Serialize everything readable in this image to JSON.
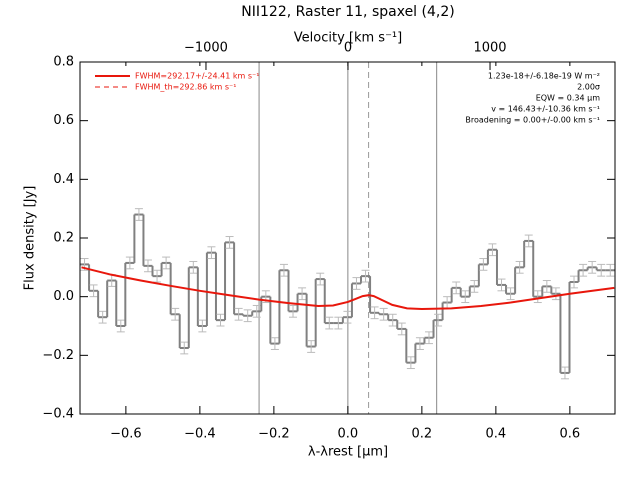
{
  "chart_data": {
    "type": "step",
    "title": "NII122, Raster 11, spaxel (4,2)",
    "xlabel": "λ-λrest [μm]",
    "ylabel": "Flux density [Jy]",
    "x2label": "Velocity [km s⁻¹]",
    "xlim": [
      -0.724,
      0.722
    ],
    "ylim": [
      -0.4,
      0.8
    ],
    "x2lim": [
      -1887,
      1880
    ],
    "xticks": [
      {
        "value": -0.6,
        "label": "−0.6"
      },
      {
        "value": -0.4,
        "label": "−0.4"
      },
      {
        "value": -0.2,
        "label": "−0.2"
      },
      {
        "value": 0,
        "label": "0.0"
      },
      0.2,
      0.4,
      0.6
    ],
    "yticks": [
      {
        "value": -0.4,
        "label": "−0.4"
      },
      {
        "value": -0.2,
        "label": "−0.2"
      },
      {
        "value": 0,
        "label": "0.0"
      },
      0.2,
      0.4,
      0.6,
      0.8
    ],
    "x2ticks": [
      {
        "value": -1000,
        "label": "−1000"
      },
      0,
      1000
    ],
    "series": [
      {
        "color": "#808080",
        "bins": [
          -0.724,
          -0.6995,
          -0.675,
          -0.6505,
          -0.626,
          -0.6015,
          -0.577,
          -0.5525,
          -0.528,
          -0.5035,
          -0.479,
          -0.4545,
          -0.43,
          -0.4055,
          -0.381,
          -0.3565,
          -0.332,
          -0.3075,
          -0.283,
          -0.2585,
          -0.234,
          -0.2095,
          -0.185,
          -0.1605,
          -0.136,
          -0.1115,
          -0.087,
          -0.0625,
          -0.038,
          -0.0135,
          0.011,
          0.0355,
          0.06,
          0.0845,
          0.109,
          0.1335,
          0.158,
          0.1825,
          0.207,
          0.2315,
          0.256,
          0.2805,
          0.305,
          0.3295,
          0.354,
          0.3785,
          0.403,
          0.4275,
          0.452,
          0.4765,
          0.501,
          0.5255,
          0.55,
          0.5745,
          0.599,
          0.6235,
          0.648,
          0.6725,
          0.697,
          0.7215
        ],
        "values": [
          0.11,
          0.02,
          -0.07,
          0.055,
          -0.1,
          0.115,
          0.28,
          0.105,
          0.07,
          0.115,
          -0.06,
          -0.175,
          0.1,
          -0.1,
          0.15,
          -0.08,
          0.185,
          -0.06,
          -0.065,
          -0.05,
          0.0,
          -0.16,
          0.09,
          -0.05,
          0.01,
          -0.17,
          0.06,
          -0.09,
          -0.09,
          -0.07,
          0.045,
          0.07,
          -0.055,
          -0.06,
          -0.08,
          -0.11,
          -0.225,
          -0.16,
          -0.14,
          -0.08,
          -0.02,
          0.03,
          0.0,
          0.035,
          0.11,
          0.16,
          0.04,
          0.01,
          0.1,
          0.19,
          0.0,
          0.035,
          0.01,
          -0.26,
          0.05,
          0.09,
          0.1,
          0.09,
          0.09
        ],
        "error": 0.02
      },
      {
        "name": "FWHM=292.17+/-24.41 km s⁻¹",
        "color": "#e8170c",
        "x": [
          -0.72,
          -0.64,
          -0.56,
          -0.48,
          -0.4,
          -0.32,
          -0.24,
          -0.16,
          -0.08,
          -0.04,
          0.0,
          0.02,
          0.04,
          0.056,
          0.07,
          0.09,
          0.12,
          0.16,
          0.2,
          0.28,
          0.36,
          0.44,
          0.52,
          0.6,
          0.72
        ],
        "values": [
          0.1,
          0.075,
          0.055,
          0.037,
          0.02,
          0.005,
          -0.01,
          -0.022,
          -0.032,
          -0.03,
          -0.018,
          -0.008,
          0.002,
          0.005,
          0.002,
          -0.01,
          -0.028,
          -0.04,
          -0.042,
          -0.04,
          -0.032,
          -0.02,
          -0.005,
          0.01,
          0.03
        ]
      },
      {
        "name": "FWHM_th=292.86 km s⁻¹",
        "color": "#e8170c",
        "dashed": true
      }
    ],
    "vlines": [
      -0.24,
      0,
      0.24
    ],
    "dashed_vline": 0.056,
    "annotations": [
      "1.23e-18+/-6.18e-19 W m⁻²",
      "2.00σ",
      "EQW = 0.34 μm",
      "v = 146.43+/-10.36 km s⁻¹",
      "Broadening = 0.00+/-0.00 km s⁻¹"
    ]
  }
}
